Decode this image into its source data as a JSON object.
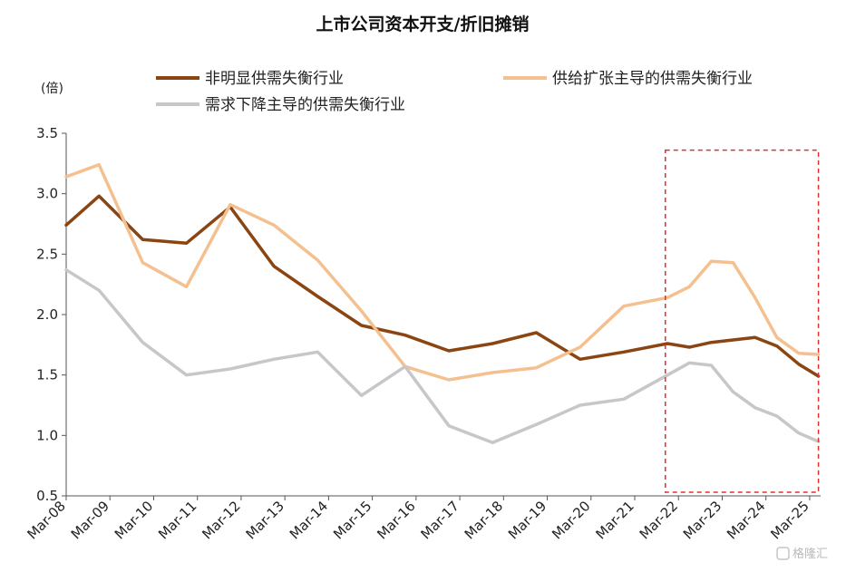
{
  "chart_data": {
    "type": "line",
    "title": "上市公司资本开支/折旧摊销",
    "y_unit": "(倍)",
    "ylim": [
      0.5,
      3.5
    ],
    "yticks": [
      "0.5",
      "1.0",
      "1.5",
      "2.0",
      "2.5",
      "3.0",
      "3.5"
    ],
    "grid": false,
    "legend_position": "top",
    "x_tick_labels": [
      "Mar-08",
      "Mar-09",
      "Mar-10",
      "Mar-11",
      "Mar-12",
      "Mar-13",
      "Mar-14",
      "Mar-15",
      "Mar-16",
      "Mar-17",
      "Mar-18",
      "Mar-19",
      "Mar-20",
      "Mar-21",
      "Mar-22",
      "Mar-23",
      "Mar-24",
      "Mar-25"
    ],
    "x_range": [
      2008.0,
      2025.25
    ],
    "highlight_box": {
      "x_from": 2021.7,
      "x_to": 2025.2,
      "y_from": 0.53,
      "y_to": 3.36,
      "color": "#e03030"
    },
    "series": [
      {
        "name": "非明显供需失衡行业",
        "color": "#8b4513",
        "x": [
          2008.0,
          2008.75,
          2009.75,
          2010.75,
          2011.75,
          2012.75,
          2013.75,
          2014.75,
          2015.75,
          2016.75,
          2017.75,
          2018.75,
          2019.75,
          2020.75,
          2021.75,
          2022.25,
          2022.75,
          2023.25,
          2023.75,
          2024.25,
          2024.75,
          2025.2
        ],
        "y": [
          2.74,
          2.98,
          2.62,
          2.59,
          2.89,
          2.4,
          2.15,
          1.91,
          1.83,
          1.7,
          1.76,
          1.85,
          1.63,
          1.69,
          1.76,
          1.73,
          1.77,
          1.79,
          1.81,
          1.74,
          1.59,
          1.49
        ]
      },
      {
        "name": "供给扩张主导的供需失衡行业",
        "color": "#f5c08f",
        "x": [
          2008.0,
          2008.75,
          2009.75,
          2010.75,
          2011.75,
          2012.75,
          2013.75,
          2014.75,
          2015.75,
          2016.75,
          2017.75,
          2018.75,
          2019.75,
          2020.75,
          2021.75,
          2022.25,
          2022.75,
          2023.25,
          2023.75,
          2024.25,
          2024.75,
          2025.2
        ],
        "y": [
          3.14,
          3.24,
          2.43,
          2.23,
          2.91,
          2.74,
          2.45,
          2.03,
          1.57,
          1.46,
          1.52,
          1.56,
          1.73,
          2.07,
          2.14,
          2.23,
          2.44,
          2.43,
          2.14,
          1.81,
          1.68,
          1.67
        ]
      },
      {
        "name": "需求下降主导的供需失衡行业",
        "color": "#c7c7c7",
        "x": [
          2008.0,
          2008.75,
          2009.75,
          2010.75,
          2011.75,
          2012.75,
          2013.75,
          2014.75,
          2015.75,
          2016.75,
          2017.75,
          2018.75,
          2019.75,
          2020.75,
          2021.75,
          2022.25,
          2022.75,
          2023.25,
          2023.75,
          2024.25,
          2024.75,
          2025.2
        ],
        "y": [
          2.37,
          2.2,
          1.77,
          1.5,
          1.55,
          1.63,
          1.69,
          1.33,
          1.57,
          1.08,
          0.94,
          1.09,
          1.25,
          1.3,
          1.5,
          1.6,
          1.58,
          1.36,
          1.23,
          1.16,
          1.02,
          0.95
        ]
      }
    ]
  },
  "watermark": "格隆汇"
}
